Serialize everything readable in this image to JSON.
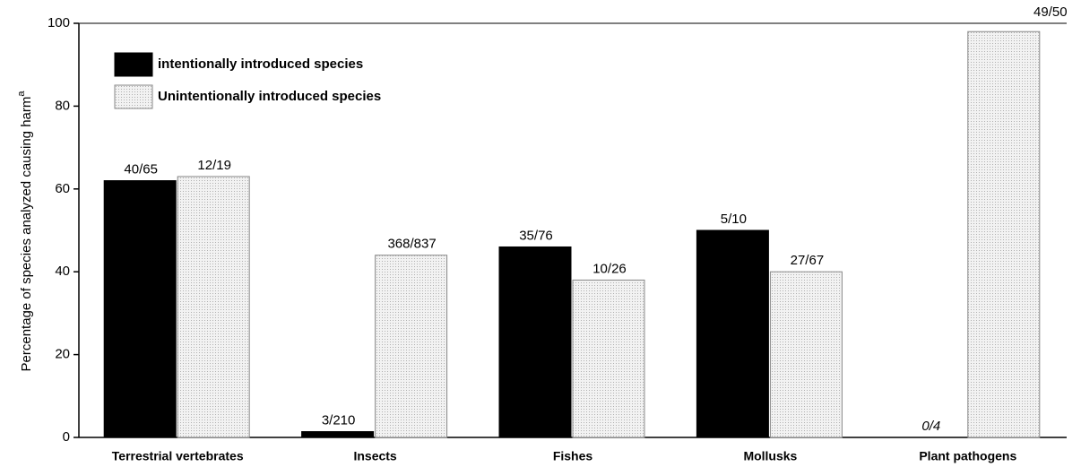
{
  "chart_data": {
    "type": "bar",
    "ylabel": "Percentage of species analyzed causing harm",
    "ylabel_superscript": "a",
    "categories": [
      "Terrestrial vertebrates",
      "Insects",
      "Fishes",
      "Mollusks",
      "Plant pathogens"
    ],
    "series": [
      {
        "name": "intentionally introduced species",
        "color": "#000000",
        "values": [
          62,
          1.4,
          46,
          50,
          0
        ],
        "value_labels": [
          "40/65",
          "3/210",
          "35/76",
          "5/10",
          "0/4"
        ]
      },
      {
        "name": "Unintentionally introduced species",
        "color": "#e4e4e4",
        "values": [
          63,
          44,
          38,
          40,
          98
        ],
        "value_labels": [
          "12/19",
          "368/837",
          "10/26",
          "27/67",
          "49/50"
        ]
      }
    ],
    "ylim": [
      0,
      100
    ],
    "yticks": [
      0,
      20,
      40,
      60,
      80,
      100
    ],
    "grid": false,
    "legend": "upper left"
  }
}
